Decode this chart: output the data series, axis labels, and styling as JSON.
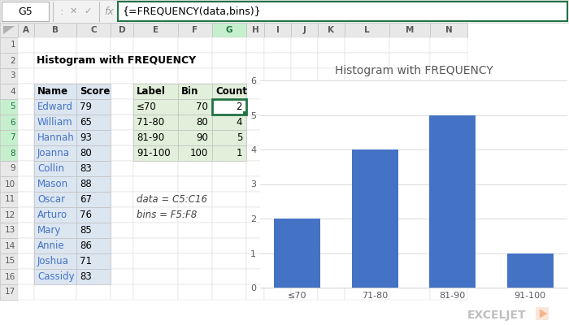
{
  "title": "Histogram with FREQUENCY",
  "formula_bar_text": "{=FREQUENCY(data,bins)}",
  "cell_ref": "G5",
  "spreadsheet_bg": "#ffffff",
  "names": [
    "Edward",
    "William",
    "Hannah",
    "Joanna",
    "Collin",
    "Mason",
    "Oscar",
    "Arturo",
    "Mary",
    "Annie",
    "Joshua",
    "Cassidy"
  ],
  "scores": [
    79,
    65,
    93,
    80,
    83,
    88,
    67,
    76,
    85,
    86,
    71,
    83
  ],
  "labels": [
    "≤70",
    "71-80",
    "81-90",
    "91-100"
  ],
  "bins": [
    70,
    80,
    90,
    100
  ],
  "counts": [
    2,
    4,
    5,
    1
  ],
  "note_data": "data = C5:C16",
  "note_bins": "bins = F5:F8",
  "bar_color": "#4472c4",
  "chart_title": "Histogram with FREQUENCY",
  "chart_title_color": "#595959",
  "chart_title_fontsize": 10,
  "ylim": [
    0,
    6
  ],
  "yticks": [
    0,
    1,
    2,
    3,
    4,
    5,
    6
  ],
  "grid_color": "#d9d9d9",
  "tick_label_fontsize": 8,
  "name_col_color": "#4472c4",
  "logo_color": "#b0b0b0",
  "logo_excel_color": "#c0c0c0",
  "logo_arrow_color": "#f4b183",
  "selected_cell_border": "#217346",
  "formula_bar_border": "#217346",
  "col_header_selected_bg": "#c6efce",
  "col_header_selected_tc": "#217346",
  "row_header_selected_bg": "#c6efce",
  "row_header_selected_tc": "#217346",
  "name_bg": "#dce6f1",
  "label_bg": "#e2efda",
  "col_header_bg": "#e8e8e8",
  "formula_bar_bg": "#f2f2f2"
}
